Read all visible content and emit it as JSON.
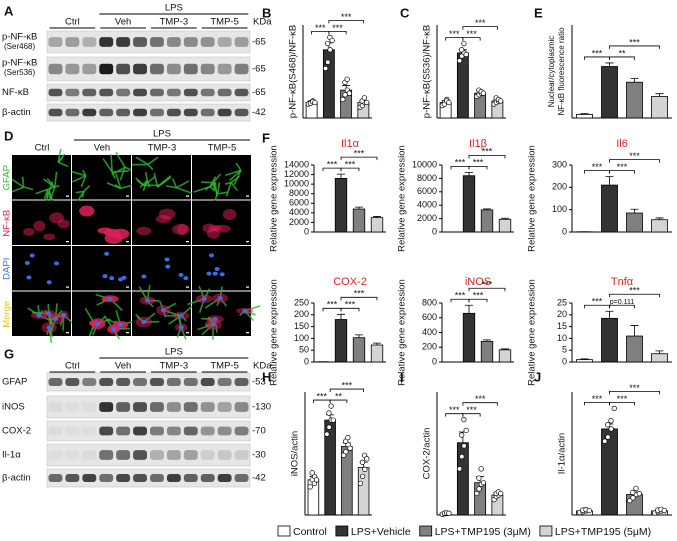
{
  "figure": {
    "blots": [
      {
        "panel": "A",
        "treatment": "LPS",
        "groups": [
          "Ctrl",
          "Veh",
          "TMP-3",
          "TMP-5"
        ],
        "unit": "KDa",
        "rows": [
          {
            "label": "p-NF-κB",
            "sublabel": "(Ser468)",
            "size": "-65"
          },
          {
            "label": "p-NF-κB",
            "sublabel": "(Ser536)",
            "size": "-65"
          },
          {
            "label": "NF-κB",
            "size": "-65"
          },
          {
            "label": "β-actin",
            "size": "-42"
          }
        ]
      },
      {
        "panel": "G",
        "treatment": "LPS",
        "groups": [
          "Ctrl",
          "Veh",
          "TMP-3",
          "TMP-5"
        ],
        "unit": "KDa",
        "rows": [
          {
            "label": "GFAP",
            "size": "-53"
          },
          {
            "label": "iNOS",
            "size": "-130"
          },
          {
            "label": "COX-2",
            "size": "-70"
          },
          {
            "label": "Il-1α",
            "size": "-30"
          },
          {
            "label": "β-actin",
            "size": "-42"
          }
        ]
      }
    ],
    "micrographs": {
      "panel": "D",
      "treatment": "LPS",
      "columns": [
        "Ctrl",
        "Veh",
        "TMP-3",
        "TMP-5"
      ],
      "rows": [
        {
          "label": "GFAP",
          "color": "#2db82d"
        },
        {
          "label": "NF-κB",
          "color": "#e0205a"
        },
        {
          "label": "DAPI",
          "color": "#3a6ee8"
        },
        {
          "label": "Merge",
          "color": "#e8c800"
        }
      ]
    },
    "legend": [
      {
        "name": "Control",
        "color": "#ffffff"
      },
      {
        "name": "LPS+Vehicle",
        "color": "#333333"
      },
      {
        "name": "LPS+TMP195 (3μM)",
        "color": "#808080"
      },
      {
        "name": "LPS+TMP195 (5μM)",
        "color": "#d4d4d4"
      }
    ]
  },
  "chart_data": [
    {
      "type": "bar",
      "panel": "B",
      "y_label": [
        "p-NF-κB(S468)/NF-κB"
      ],
      "ylim": [
        0,
        6
      ],
      "values": [
        1.0,
        4.4,
        1.8,
        1.0
      ],
      "errors": [
        0.1,
        0.45,
        0.3,
        0.1
      ],
      "points": [
        [
          0.9,
          1.0,
          1.1,
          0.95,
          1.05,
          1.0
        ],
        [
          3.2,
          3.6,
          4.4,
          4.8,
          5.2,
          5.0
        ],
        [
          1.2,
          1.5,
          1.8,
          2.3,
          2.5,
          1.6
        ],
        [
          0.7,
          0.8,
          1.0,
          1.1,
          1.3,
          1.0
        ]
      ],
      "significance": [
        {
          "pair": [
            0,
            1
          ],
          "label": "***"
        },
        {
          "pair": [
            1,
            2
          ],
          "label": "***"
        },
        {
          "pair": [
            1,
            3
          ],
          "label": "***"
        }
      ]
    },
    {
      "type": "bar",
      "panel": "C",
      "y_label": [
        "p-NF-κB(S536)/NF-κB"
      ],
      "ylim": [
        0,
        6
      ],
      "values": [
        1.0,
        4.2,
        1.6,
        1.1
      ],
      "errors": [
        0.12,
        0.2,
        0.15,
        0.1
      ],
      "points": [
        [
          0.8,
          1.0,
          1.2,
          0.9,
          1.1,
          1.0
        ],
        [
          3.7,
          4.0,
          4.2,
          4.4,
          4.8,
          4.1
        ],
        [
          1.4,
          1.5,
          1.6,
          1.8,
          1.7,
          1.6
        ],
        [
          0.9,
          1.0,
          1.1,
          1.3,
          1.2,
          1.1
        ]
      ],
      "significance": [
        {
          "pair": [
            0,
            1
          ],
          "label": "***"
        },
        {
          "pair": [
            1,
            2
          ],
          "label": "***"
        },
        {
          "pair": [
            1,
            3
          ],
          "label": "***"
        }
      ]
    },
    {
      "type": "bar",
      "panel": "E",
      "y_label": [
        "Nuclear/cytoplasmic",
        "NF-κB fluorescence ratio"
      ],
      "ylim": [
        0,
        1.3
      ],
      "values": [
        0.05,
        0.72,
        0.5,
        0.3
      ],
      "errors": [
        0.01,
        0.05,
        0.05,
        0.04
      ],
      "significance": [
        {
          "pair": [
            0,
            1
          ],
          "label": "***"
        },
        {
          "pair": [
            1,
            2
          ],
          "label": "**"
        },
        {
          "pair": [
            1,
            3
          ],
          "label": "***"
        }
      ]
    },
    {
      "type": "bar",
      "panel": "F",
      "title": "Il1α",
      "y_label": [
        "Relative gene expression"
      ],
      "ylim": [
        0,
        14000
      ],
      "yticks": [
        0,
        2000,
        4000,
        6000,
        8000,
        10000,
        12000,
        14000
      ],
      "values": [
        1,
        11200,
        4800,
        3000
      ],
      "errors": [
        0,
        900,
        400,
        250
      ],
      "significance": [
        {
          "pair": [
            0,
            1
          ],
          "label": "***"
        },
        {
          "pair": [
            1,
            2
          ],
          "label": "***"
        },
        {
          "pair": [
            1,
            3
          ],
          "label": "***"
        }
      ]
    },
    {
      "type": "bar",
      "title": "Il1β",
      "y_label": [
        "Relative gene expression"
      ],
      "ylim": [
        0,
        10000
      ],
      "yticks": [
        0,
        2000,
        4000,
        6000,
        8000,
        10000
      ],
      "values": [
        1,
        8400,
        3300,
        1900
      ],
      "errors": [
        0,
        500,
        150,
        150
      ],
      "significance": [
        {
          "pair": [
            0,
            1
          ],
          "label": "***"
        },
        {
          "pair": [
            1,
            2
          ],
          "label": "***"
        },
        {
          "pair": [
            1,
            3
          ],
          "label": "***"
        }
      ]
    },
    {
      "type": "bar",
      "title": "Il6",
      "y_label": [
        "Relative gene expression"
      ],
      "ylim": [
        0,
        300
      ],
      "yticks": [
        0,
        100,
        200,
        300
      ],
      "values": [
        1,
        210,
        85,
        55
      ],
      "errors": [
        0,
        38,
        17,
        8
      ],
      "significance": [
        {
          "pair": [
            0,
            1
          ],
          "label": "***"
        },
        {
          "pair": [
            1,
            2
          ],
          "label": "***"
        },
        {
          "pair": [
            1,
            3
          ],
          "label": "***"
        }
      ]
    },
    {
      "type": "bar",
      "title": "COX-2",
      "y_label": [
        "Relative gene expression"
      ],
      "ylim": [
        0,
        250
      ],
      "yticks": [
        0,
        50,
        100,
        150,
        200,
        250
      ],
      "values": [
        1,
        180,
        103,
        72
      ],
      "errors": [
        0,
        22,
        12,
        8
      ],
      "significance": [
        {
          "pair": [
            0,
            1
          ],
          "label": "***"
        },
        {
          "pair": [
            1,
            2
          ],
          "label": "***"
        },
        {
          "pair": [
            1,
            3
          ],
          "label": "***"
        }
      ]
    },
    {
      "type": "bar",
      "title": "iNOS",
      "y_label": [
        "Relative gene expression"
      ],
      "ylim": [
        0,
        800
      ],
      "yticks": [
        0,
        200,
        400,
        600,
        800
      ],
      "values": [
        1,
        660,
        280,
        165
      ],
      "errors": [
        0,
        110,
        20,
        12
      ],
      "significance": [
        {
          "pair": [
            0,
            1
          ],
          "label": "***"
        },
        {
          "pair": [
            1,
            2
          ],
          "label": "***"
        },
        {
          "pair": [
            1,
            3
          ],
          "label": "***"
        }
      ]
    },
    {
      "type": "bar",
      "title": "Tnfα",
      "y_label": [
        "Relative gene expression"
      ],
      "ylim": [
        0,
        25
      ],
      "yticks": [
        0,
        5,
        10,
        15,
        20,
        25
      ],
      "values": [
        1,
        18.5,
        11,
        3.5
      ],
      "errors": [
        0.3,
        3,
        4.5,
        1.2
      ],
      "significance": [
        {
          "pair": [
            0,
            1
          ],
          "label": "***"
        },
        {
          "pair": [
            1,
            2
          ],
          "label": "p=0.111"
        },
        {
          "pair": [
            1,
            3
          ],
          "label": "***"
        }
      ]
    },
    {
      "type": "bar",
      "panel": "H",
      "y_label": [
        "iNOS/actin"
      ],
      "ylim": [
        0,
        3.5
      ],
      "values": [
        1,
        2.7,
        1.95,
        1.35
      ],
      "errors": [
        0.1,
        0.15,
        0.1,
        0.15
      ],
      "points": [
        [
          0.8,
          1.0,
          1.1,
          1.2,
          0.9,
          1.0
        ],
        [
          2.3,
          2.5,
          2.7,
          2.9,
          3.1,
          2.7
        ],
        [
          1.7,
          1.8,
          2.0,
          2.1,
          2.2,
          1.9
        ],
        [
          0.9,
          1.1,
          1.3,
          1.5,
          1.7,
          1.6
        ]
      ],
      "significance": [
        {
          "pair": [
            0,
            1
          ],
          "label": "***"
        },
        {
          "pair": [
            1,
            2
          ],
          "label": "**"
        },
        {
          "pair": [
            1,
            3
          ],
          "label": "***"
        }
      ]
    },
    {
      "type": "bar",
      "panel": "I",
      "y_label": [
        "COX-2/actin"
      ],
      "ylim": [
        0,
        80
      ],
      "values": [
        1,
        47,
        21,
        13
      ],
      "errors": [
        0.3,
        7,
        4,
        1.5
      ],
      "points": [
        [
          0.5,
          0.8,
          1.0,
          1.2,
          1.4,
          1.1
        ],
        [
          30,
          38,
          45,
          52,
          62,
          55
        ],
        [
          14,
          17,
          20,
          24,
          30,
          21
        ],
        [
          10,
          12,
          13,
          14,
          15,
          14
        ]
      ],
      "significance": [
        {
          "pair": [
            0,
            1
          ],
          "label": "***"
        },
        {
          "pair": [
            1,
            2
          ],
          "label": "***"
        },
        {
          "pair": [
            1,
            3
          ],
          "label": "***"
        }
      ]
    },
    {
      "type": "bar",
      "panel": "J",
      "y_label": [
        "Il-1α/actin"
      ],
      "ylim": [
        0,
        30
      ],
      "values": [
        1,
        21,
        5,
        1
      ],
      "errors": [
        0.2,
        1.2,
        0.6,
        0.3
      ],
      "points": [
        [
          0.6,
          0.8,
          1.0,
          1.2,
          1.3,
          1.1
        ],
        [
          18,
          19,
          21,
          22,
          23,
          26
        ],
        [
          3.5,
          4.2,
          5,
          5.5,
          6.5,
          5.2
        ],
        [
          0.5,
          0.8,
          1.0,
          1.2,
          1.4,
          1.1
        ]
      ],
      "significance": [
        {
          "pair": [
            0,
            1
          ],
          "label": "***"
        },
        {
          "pair": [
            1,
            2
          ],
          "label": "***"
        },
        {
          "pair": [
            1,
            3
          ],
          "label": "***"
        }
      ]
    }
  ]
}
